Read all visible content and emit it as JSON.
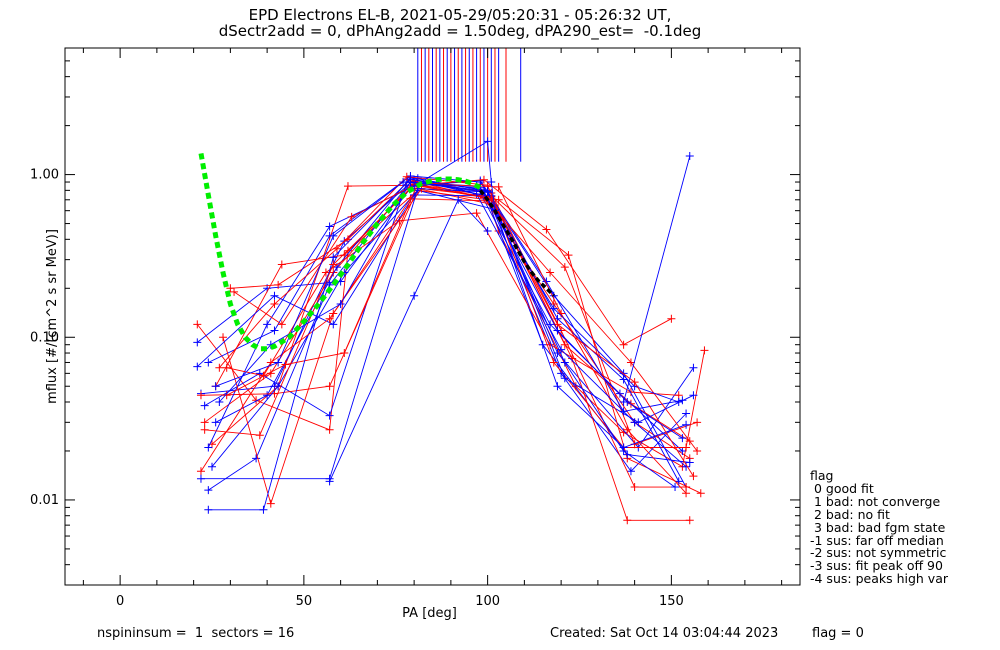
{
  "title": {
    "line1": "EPD Electrons EL-B, 2021-05-29/05:20:31 - 05:26:32 UT,",
    "line2": "dSectr2add = 0, dPhAng2add = 1.50deg, dPA290_est=  -0.1deg"
  },
  "footer": {
    "left": "nspininsum =  1  sectors = 16",
    "created": "Created: Sat Oct 14 03:04:44 2023",
    "flag": "flag = 0"
  },
  "legend": {
    "title": "flag",
    "entries": [
      " 0 good fit",
      " 1 bad: not converge",
      " 2 bad: no fit",
      " 3 bad: bad fgm state",
      "-1 sus: far off median",
      "-2 sus: not symmetric",
      "-3 sus: fit peak off 90",
      "-4 sus: peaks high var"
    ]
  },
  "chart_data": {
    "type": "line",
    "xlabel": "PA [deg]",
    "ylabel": "mflux [#/(cm^2 s sr MeV)]",
    "xlim": [
      -15,
      185
    ],
    "ylim": [
      0.003,
      6.0
    ],
    "yscale": "log",
    "x_ticks": [
      0,
      50,
      100,
      150
    ],
    "y_ticks": [
      0.01,
      0.1,
      1.0
    ],
    "y_tick_labels": [
      "0.01",
      "0.10",
      "1.00"
    ],
    "colors": {
      "red": "#ff0000",
      "blue": "#0000ff",
      "green": "#00ee00",
      "black": "#000000"
    },
    "fit_green": {
      "x": [
        22,
        24,
        26,
        28,
        30,
        32,
        34,
        36,
        38,
        40,
        42,
        46,
        50,
        54,
        58,
        62,
        66,
        70,
        74,
        78,
        82,
        86,
        88,
        90,
        92,
        94,
        96,
        98
      ],
      "y": [
        1.35,
        0.75,
        0.42,
        0.25,
        0.16,
        0.12,
        0.1,
        0.09,
        0.085,
        0.085,
        0.088,
        0.1,
        0.125,
        0.16,
        0.21,
        0.28,
        0.38,
        0.5,
        0.64,
        0.78,
        0.88,
        0.93,
        0.94,
        0.94,
        0.93,
        0.91,
        0.88,
        0.83
      ]
    },
    "fit_black": {
      "x": [
        98,
        100,
        102,
        104,
        106,
        108,
        110,
        112,
        114,
        116,
        118
      ],
      "y": [
        0.8,
        0.7,
        0.6,
        0.5,
        0.42,
        0.35,
        0.29,
        0.25,
        0.22,
        0.2,
        0.18
      ]
    },
    "vertical_markers": {
      "x": [
        81,
        82,
        83,
        84,
        85,
        86,
        87,
        88,
        89,
        90,
        91,
        92,
        93,
        94,
        95,
        96,
        97,
        98,
        99,
        100,
        101,
        102,
        103,
        105,
        109
      ],
      "ybottom": [
        1.2,
        1.2,
        1.2,
        1.2,
        1.2,
        1.2,
        1.2,
        1.2,
        1.2,
        1.2,
        1.2,
        1.2,
        1.2,
        1.2,
        1.2,
        1.2,
        1.2,
        1.2,
        1.2,
        1.2,
        1.2,
        1.2,
        1.2,
        1.2,
        1.2
      ]
    },
    "spikes": [
      {
        "color": "blue",
        "x": [
          137,
          155
        ],
        "y": [
          0.04,
          1.3
        ]
      },
      {
        "color": "blue",
        "x": [
          80,
          100,
          101,
          102
        ],
        "y": [
          0.85,
          1.6,
          0.9,
          0.6
        ]
      },
      {
        "color": "blue",
        "x": [
          57,
          80,
          92,
          100
        ],
        "y": [
          0.013,
          0.18,
          0.7,
          0.45
        ]
      }
    ],
    "series": [
      {
        "color": "red",
        "x": [
          21,
          37,
          57,
          62,
          81,
          100,
          103,
          124,
          137,
          153,
          159
        ],
        "y": [
          0.12,
          0.041,
          0.027,
          0.34,
          0.8,
          0.7,
          0.45,
          0.05,
          0.026,
          0.016,
          0.083
        ]
      },
      {
        "color": "blue",
        "x": [
          22,
          42,
          61,
          80,
          100,
          119,
          141,
          156
        ],
        "y": [
          0.045,
          0.05,
          0.39,
          0.93,
          0.8,
          0.08,
          0.021,
          0.065
        ]
      },
      {
        "color": "red",
        "x": [
          23,
          41,
          58,
          80,
          99,
          118,
          140,
          155
        ],
        "y": [
          0.03,
          0.06,
          0.25,
          0.91,
          0.72,
          0.16,
          0.03,
          0.018
        ]
      },
      {
        "color": "blue",
        "x": [
          24,
          42,
          57,
          79,
          98,
          118,
          137,
          154
        ],
        "y": [
          0.07,
          0.11,
          0.42,
          0.98,
          0.9,
          0.18,
          0.06,
          0.012
        ]
      },
      {
        "color": "red",
        "x": [
          25,
          43,
          62,
          82,
          101,
          121,
          140,
          157
        ],
        "y": [
          0.022,
          0.05,
          0.85,
          0.86,
          0.74,
          0.27,
          0.022,
          0.03
        ]
      },
      {
        "color": "blue",
        "x": [
          21,
          40,
          60,
          81,
          100,
          120,
          139,
          154
        ],
        "y": [
          0.093,
          0.2,
          0.22,
          0.95,
          0.73,
          0.06,
          0.015,
          0.034
        ]
      },
      {
        "color": "red",
        "x": [
          26,
          44,
          61,
          80,
          103,
          122,
          138,
          158
        ],
        "y": [
          0.05,
          0.28,
          0.32,
          0.87,
          0.7,
          0.32,
          0.018,
          0.011
        ]
      },
      {
        "color": "blue",
        "x": [
          23,
          38,
          57,
          78,
          97,
          117,
          136,
          153
        ],
        "y": [
          0.038,
          0.06,
          0.033,
          0.9,
          0.85,
          0.12,
          0.045,
          0.02
        ]
      },
      {
        "color": "red",
        "x": [
          30,
          43,
          62,
          79,
          101,
          120,
          140,
          154
        ],
        "y": [
          0.2,
          0.21,
          0.4,
          0.93,
          0.77,
          0.11,
          0.012,
          0.012
        ]
      },
      {
        "color": "blue",
        "x": [
          26,
          40,
          59,
          79,
          99,
          115,
          138,
          155
        ],
        "y": [
          0.03,
          0.044,
          0.27,
          0.96,
          0.8,
          0.09,
          0.019,
          0.017
        ]
      },
      {
        "color": "red",
        "x": [
          22,
          42,
          57,
          81,
          102,
          121,
          139,
          155
        ],
        "y": [
          0.044,
          0.045,
          0.05,
          0.82,
          0.65,
          0.09,
          0.039,
          0.023
        ]
      },
      {
        "color": "blue",
        "x": [
          24,
          40,
          57,
          80,
          98,
          116,
          137,
          153
        ],
        "y": [
          0.021,
          0.12,
          0.48,
          0.85,
          0.92,
          0.22,
          0.035,
          0.041
        ]
      },
      {
        "color": "red",
        "x": [
          27,
          42,
          59,
          78,
          100,
          118,
          137,
          154
        ],
        "y": [
          0.065,
          0.16,
          0.35,
          0.97,
          0.86,
          0.07,
          0.021,
          0.021
        ]
      },
      {
        "color": "blue",
        "x": [
          25,
          43,
          61,
          81,
          102,
          119,
          137,
          154
        ],
        "y": [
          0.016,
          0.05,
          0.25,
          0.8,
          0.61,
          0.05,
          0.021,
          0.029
        ]
      },
      {
        "color": "red",
        "x": [
          29,
          39,
          56,
          76,
          97,
          117,
          139,
          152
        ],
        "y": [
          0.065,
          0.058,
          0.25,
          0.52,
          0.58,
          0.09,
          0.046,
          0.044
        ]
      },
      {
        "color": "blue",
        "x": [
          24,
          37,
          57,
          79,
          100,
          119,
          137,
          152
        ],
        "y": [
          0.0115,
          0.018,
          0.21,
          0.9,
          0.79,
          0.13,
          0.055,
          0.013
        ]
      },
      {
        "color": "red",
        "x": [
          28,
          41,
          58,
          79,
          100,
          117,
          139,
          157
        ],
        "y": [
          0.1,
          0.0095,
          0.14,
          0.71,
          0.69,
          0.25,
          0.07,
          0.02
        ]
      },
      {
        "color": "blue",
        "x": [
          21,
          42,
          58,
          80,
          101,
          121,
          141,
          156
        ],
        "y": [
          0.066,
          0.18,
          0.12,
          0.75,
          0.74,
          0.056,
          0.03,
          0.044
        ]
      },
      {
        "color": "red",
        "x": [
          22,
          41,
          57,
          82,
          101,
          123,
          138,
          155
        ],
        "y": [
          0.015,
          0.07,
          0.13,
          0.82,
          0.73,
          0.074,
          0.0075,
          0.0075
        ]
      },
      {
        "color": "blue",
        "x": [
          22,
          57,
          81,
          100,
          121,
          137,
          151
        ],
        "y": [
          0.0135,
          0.0135,
          0.82,
          0.78,
          0.07,
          0.02,
          0.012
        ]
      },
      {
        "color": "red",
        "x": [
          29,
          45,
          61,
          81,
          103,
          120,
          138,
          154
        ],
        "y": [
          0.044,
          0.068,
          0.08,
          0.88,
          0.84,
          0.14,
          0.027,
          0.011
        ]
      },
      {
        "color": "blue",
        "x": [
          24,
          39,
          58,
          79,
          97,
          120,
          140,
          154
        ],
        "y": [
          0.0087,
          0.0087,
          0.31,
          0.94,
          0.76,
          0.084,
          0.03,
          0.016
        ]
      },
      {
        "color": "red",
        "x": [
          31,
          44,
          63,
          80,
          99,
          116,
          137,
          150
        ],
        "y": [
          0.19,
          0.12,
          0.55,
          0.86,
          0.93,
          0.46,
          0.09,
          0.13
        ]
      },
      {
        "color": "blue",
        "x": [
          26,
          43,
          58,
          77,
          98,
          118,
          140,
          152
        ],
        "y": [
          0.05,
          0.07,
          0.42,
          0.9,
          0.83,
          0.15,
          0.05,
          0.04
        ]
      },
      {
        "color": "red",
        "x": [
          23,
          38,
          58,
          80,
          101,
          119,
          140,
          156
        ],
        "y": [
          0.027,
          0.025,
          0.28,
          0.86,
          0.71,
          0.12,
          0.053,
          0.014
        ]
      },
      {
        "color": "blue",
        "x": [
          27,
          41,
          60,
          79,
          99,
          119,
          138,
          153
        ],
        "y": [
          0.04,
          0.09,
          0.16,
          0.9,
          0.78,
          0.11,
          0.04,
          0.024
        ]
      }
    ]
  }
}
